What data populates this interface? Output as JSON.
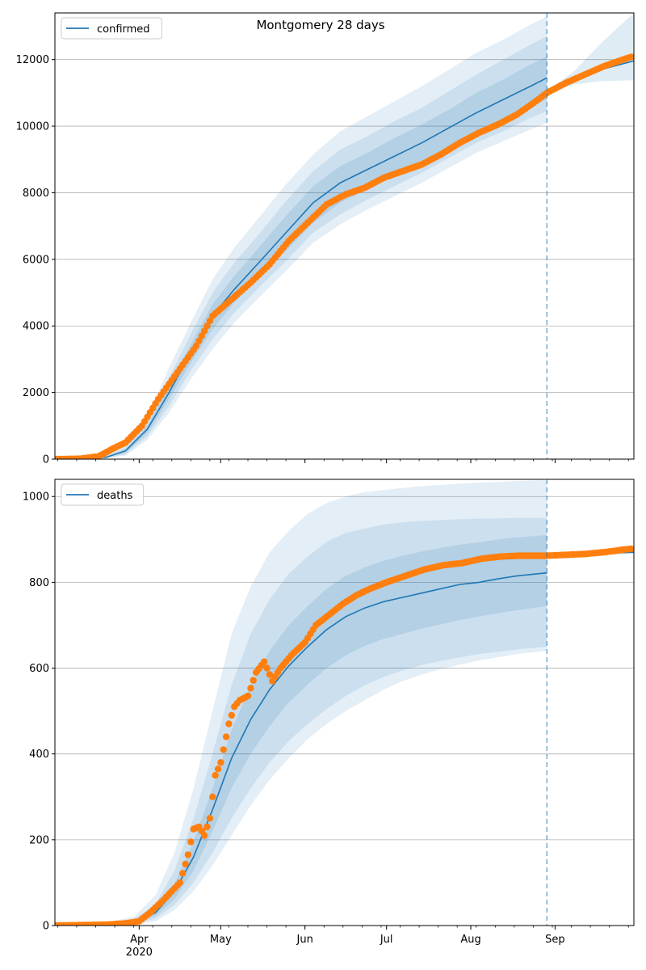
{
  "figure": {
    "title": "Montgomery 28 days",
    "x_year_label": "2020"
  },
  "chart_data": [
    {
      "type": "line",
      "legend": "top-left",
      "legend_label": "confirmed",
      "grid": "y",
      "x_start": "2020-03-01",
      "x_end": "2020-09-30",
      "forecast_date": "2020-08-29",
      "ylim": [
        0,
        13400
      ],
      "yticks": [
        0,
        2000,
        4000,
        6000,
        8000,
        10000,
        12000
      ],
      "colors": {
        "line": "#1f77b4",
        "points": "#ff7f0e",
        "band": "#1f77b4",
        "vline": "#1f77b4"
      },
      "model": {
        "x": [
          "2020-03-01",
          "2020-03-10",
          "2020-03-20",
          "2020-03-27",
          "2020-04-04",
          "2020-04-12",
          "2020-04-20",
          "2020-04-28",
          "2020-05-06",
          "2020-05-15",
          "2020-05-25",
          "2020-06-04",
          "2020-06-14",
          "2020-06-24",
          "2020-07-04",
          "2020-07-14",
          "2020-07-24",
          "2020-08-03",
          "2020-08-13",
          "2020-08-23",
          "2020-08-29"
        ],
        "median": [
          0,
          10,
          60,
          250,
          900,
          2000,
          3200,
          4300,
          5100,
          5900,
          6800,
          7700,
          8300,
          8700,
          9100,
          9500,
          9950,
          10400,
          10800,
          11200,
          11450
        ],
        "band50_lo": [
          0,
          5,
          45,
          190,
          780,
          1800,
          2900,
          3900,
          4700,
          5450,
          6250,
          7100,
          7700,
          8100,
          8500,
          8900,
          9350,
          9800,
          10200,
          10600,
          10800
        ],
        "band50_hi": [
          0,
          15,
          75,
          300,
          1000,
          2200,
          3450,
          4650,
          5500,
          6350,
          7300,
          8200,
          8800,
          9200,
          9650,
          10050,
          10500,
          11000,
          11400,
          11850,
          12100
        ],
        "band80_lo": [
          0,
          3,
          35,
          150,
          680,
          1600,
          2650,
          3600,
          4400,
          5150,
          5950,
          6800,
          7350,
          7800,
          8200,
          8600,
          9050,
          9500,
          9850,
          10250,
          10450
        ],
        "band80_hi": [
          0,
          20,
          95,
          360,
          1100,
          2450,
          3750,
          5000,
          5900,
          6750,
          7750,
          8650,
          9300,
          9700,
          10150,
          10550,
          11050,
          11550,
          12000,
          12450,
          12700
        ],
        "band95_lo": [
          0,
          1,
          25,
          110,
          580,
          1400,
          2400,
          3300,
          4100,
          4850,
          5650,
          6500,
          7050,
          7500,
          7900,
          8300,
          8750,
          9200,
          9550,
          9900,
          10100
        ],
        "band95_hi": [
          0,
          30,
          120,
          430,
          1250,
          2750,
          4100,
          5400,
          6350,
          7250,
          8250,
          9150,
          9850,
          10300,
          10750,
          11200,
          11700,
          12200,
          12600,
          13050,
          13300
        ]
      },
      "forecast": {
        "x": [
          "2020-08-29",
          "2020-09-08",
          "2020-09-18",
          "2020-09-30"
        ],
        "median": [
          11000,
          11400,
          11700,
          11960
        ],
        "band_lo": [
          10950,
          11250,
          11350,
          11380
        ],
        "band_hi": [
          11050,
          11650,
          12500,
          13400
        ]
      },
      "observed": {
        "x": [
          "2020-03-01",
          "2020-03-10",
          "2020-03-17",
          "2020-03-22",
          "2020-03-27",
          "2020-04-02",
          "2020-04-08",
          "2020-04-15",
          "2020-04-22",
          "2020-04-28",
          "2020-05-05",
          "2020-05-12",
          "2020-05-19",
          "2020-05-26",
          "2020-06-02",
          "2020-06-09",
          "2020-06-16",
          "2020-06-23",
          "2020-06-30",
          "2020-07-07",
          "2020-07-14",
          "2020-07-21",
          "2020-07-28",
          "2020-08-04",
          "2020-08-11",
          "2020-08-18",
          "2020-08-25",
          "2020-08-29",
          "2020-09-05",
          "2020-09-12",
          "2020-09-19",
          "2020-09-26",
          "2020-09-29"
        ],
        "y": [
          0,
          10,
          80,
          300,
          500,
          1000,
          1800,
          2600,
          3400,
          4300,
          4800,
          5300,
          5850,
          6550,
          7100,
          7650,
          7950,
          8150,
          8450,
          8650,
          8850,
          9150,
          9500,
          9800,
          10050,
          10350,
          10750,
          11000,
          11300,
          11550,
          11800,
          12000,
          12080
        ]
      }
    },
    {
      "type": "line",
      "legend": "top-left",
      "legend_label": "deaths",
      "grid": "y",
      "x_start": "2020-03-01",
      "x_end": "2020-09-30",
      "forecast_date": "2020-08-29",
      "ylim": [
        0,
        1040
      ],
      "yticks": [
        0,
        200,
        400,
        600,
        800,
        1000
      ],
      "colors": {
        "line": "#1f77b4",
        "points": "#ff7f0e",
        "band": "#1f77b4",
        "vline": "#1f77b4"
      },
      "xticks": [
        {
          "date": "2020-04-01",
          "label": "Apr"
        },
        {
          "date": "2020-05-01",
          "label": "May"
        },
        {
          "date": "2020-06-01",
          "label": "Jun"
        },
        {
          "date": "2020-07-01",
          "label": "Jul"
        },
        {
          "date": "2020-08-01",
          "label": "Aug"
        },
        {
          "date": "2020-09-01",
          "label": "Sep"
        }
      ],
      "model": {
        "x": [
          "2020-03-01",
          "2020-03-20",
          "2020-03-30",
          "2020-04-07",
          "2020-04-14",
          "2020-04-21",
          "2020-04-28",
          "2020-05-05",
          "2020-05-12",
          "2020-05-19",
          "2020-05-26",
          "2020-06-02",
          "2020-06-09",
          "2020-06-16",
          "2020-06-23",
          "2020-06-30",
          "2020-07-07",
          "2020-07-14",
          "2020-07-21",
          "2020-07-28",
          "2020-08-04",
          "2020-08-11",
          "2020-08-18",
          "2020-08-29"
        ],
        "median": [
          0,
          2,
          8,
          30,
          80,
          160,
          270,
          390,
          480,
          550,
          605,
          650,
          690,
          720,
          740,
          755,
          765,
          775,
          785,
          795,
          800,
          808,
          815,
          822
        ],
        "band50_lo": [
          0,
          1,
          6,
          22,
          62,
          128,
          220,
          320,
          400,
          465,
          520,
          562,
          600,
          630,
          652,
          668,
          680,
          692,
          702,
          712,
          720,
          728,
          735,
          745
        ],
        "band50_hi": [
          0,
          3,
          11,
          38,
          98,
          195,
          320,
          455,
          560,
          640,
          700,
          745,
          785,
          815,
          835,
          850,
          862,
          872,
          880,
          888,
          893,
          900,
          905,
          910
        ],
        "band80_lo": [
          0,
          1,
          4,
          16,
          48,
          100,
          170,
          250,
          320,
          380,
          430,
          470,
          505,
          535,
          560,
          580,
          595,
          607,
          617,
          625,
          633,
          638,
          644,
          650
        ],
        "band80_hi": [
          0,
          5,
          14,
          50,
          128,
          250,
          400,
          560,
          680,
          760,
          820,
          860,
          895,
          915,
          925,
          935,
          940,
          943,
          945,
          947,
          948,
          949,
          950,
          950
        ],
        "band95_lo": [
          0,
          0,
          2,
          10,
          36,
          80,
          140,
          210,
          280,
          340,
          390,
          435,
          470,
          500,
          525,
          550,
          570,
          585,
          598,
          608,
          618,
          625,
          633,
          640
        ],
        "band95_hi": [
          0,
          8,
          20,
          70,
          170,
          320,
          500,
          680,
          790,
          870,
          920,
          960,
          985,
          1000,
          1010,
          1015,
          1020,
          1024,
          1027,
          1030,
          1032,
          1034,
          1036,
          1038
        ]
      },
      "forecast": {
        "x": [
          "2020-08-29",
          "2020-09-10",
          "2020-09-20",
          "2020-09-30"
        ],
        "median": [
          862,
          865,
          868,
          870
        ],
        "band_lo": [
          860,
          862,
          864,
          866
        ],
        "band_hi": [
          864,
          868,
          874,
          882
        ]
      },
      "observed": {
        "x": [
          "2020-03-01",
          "2020-03-20",
          "2020-03-27",
          "2020-04-01",
          "2020-04-05",
          "2020-04-10",
          "2020-04-16",
          "2020-04-19",
          "2020-04-21",
          "2020-04-23",
          "2020-04-25",
          "2020-04-27",
          "2020-04-29",
          "2020-05-01",
          "2020-05-04",
          "2020-05-06",
          "2020-05-08",
          "2020-05-11",
          "2020-05-14",
          "2020-05-17",
          "2020-05-20",
          "2020-05-23",
          "2020-05-27",
          "2020-06-01",
          "2020-06-05",
          "2020-06-10",
          "2020-06-15",
          "2020-06-20",
          "2020-06-25",
          "2020-07-01",
          "2020-07-08",
          "2020-07-15",
          "2020-07-22",
          "2020-07-29",
          "2020-08-05",
          "2020-08-12",
          "2020-08-19",
          "2020-08-26",
          "2020-08-29",
          "2020-09-05",
          "2020-09-12",
          "2020-09-19",
          "2020-09-26",
          "2020-09-29"
        ],
        "y": [
          0,
          2,
          5,
          10,
          30,
          60,
          100,
          165,
          225,
          230,
          210,
          250,
          350,
          380,
          470,
          510,
          525,
          535,
          590,
          615,
          570,
          600,
          630,
          660,
          700,
          725,
          750,
          770,
          785,
          800,
          815,
          830,
          840,
          845,
          855,
          860,
          862,
          862,
          862,
          864,
          866,
          870,
          876,
          878
        ]
      }
    }
  ]
}
